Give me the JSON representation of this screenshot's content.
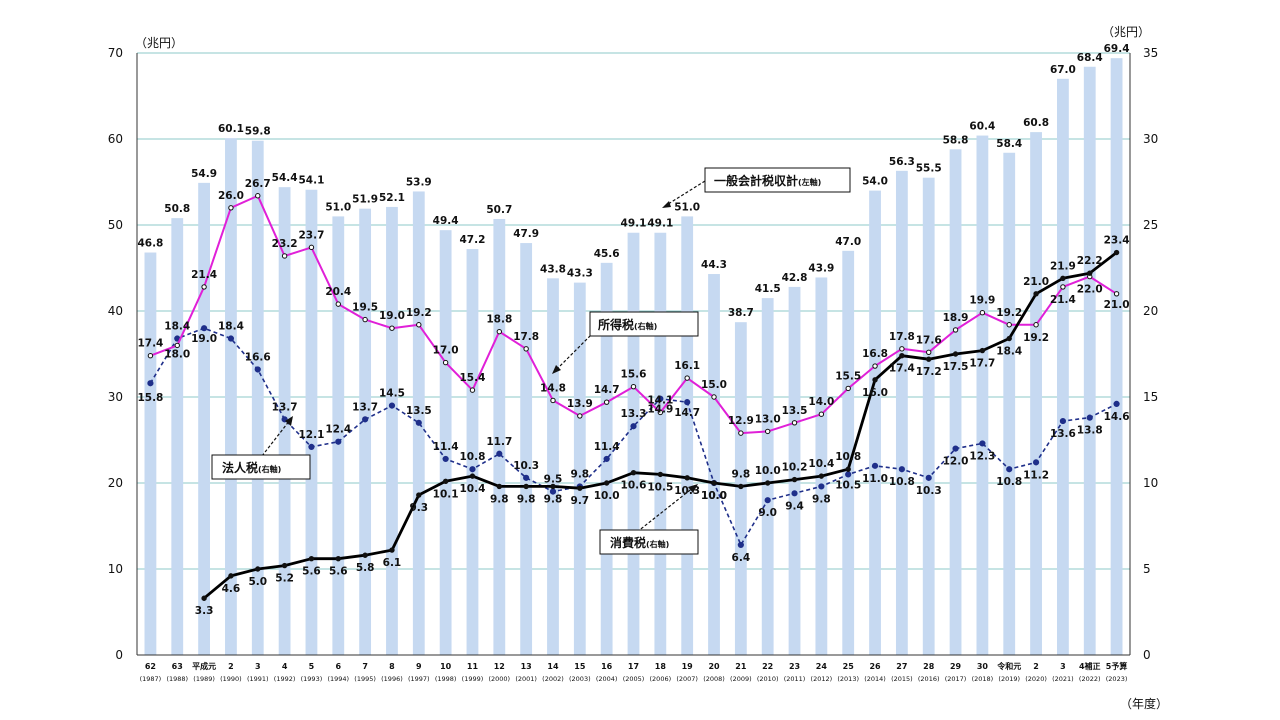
{
  "chart_data": {
    "type": "bar",
    "left_unit": "（兆円）",
    "right_unit": "（兆円）",
    "x_unit": "（年度）",
    "y_left_range": [
      0,
      70
    ],
    "y_right_range": [
      0,
      35
    ],
    "y_left_ticks": [
      "0",
      "10",
      "20",
      "30",
      "40",
      "50",
      "60",
      "70"
    ],
    "y_right_ticks": [
      "0",
      "5",
      "10",
      "15",
      "20",
      "25",
      "30",
      "35"
    ],
    "x_labels": [
      [
        "62",
        "(1987)"
      ],
      [
        "63",
        "(1988)"
      ],
      [
        "平成元",
        "(1989)"
      ],
      [
        "2",
        "(1990)"
      ],
      [
        "3",
        "(1991)"
      ],
      [
        "4",
        "(1992)"
      ],
      [
        "5",
        "(1993)"
      ],
      [
        "6",
        "(1994)"
      ],
      [
        "7",
        "(1995)"
      ],
      [
        "8",
        "(1996)"
      ],
      [
        "9",
        "(1997)"
      ],
      [
        "10",
        "(1998)"
      ],
      [
        "11",
        "(1999)"
      ],
      [
        "12",
        "(2000)"
      ],
      [
        "13",
        "(2001)"
      ],
      [
        "14",
        "(2002)"
      ],
      [
        "15",
        "(2003)"
      ],
      [
        "16",
        "(2004)"
      ],
      [
        "17",
        "(2005)"
      ],
      [
        "18",
        "(2006)"
      ],
      [
        "19",
        "(2007)"
      ],
      [
        "20",
        "(2008)"
      ],
      [
        "21",
        "(2009)"
      ],
      [
        "22",
        "(2010)"
      ],
      [
        "23",
        "(2011)"
      ],
      [
        "24",
        "(2012)"
      ],
      [
        "25",
        "(2013)"
      ],
      [
        "26",
        "(2014)"
      ],
      [
        "27",
        "(2015)"
      ],
      [
        "28",
        "(2016)"
      ],
      [
        "29",
        "(2017)"
      ],
      [
        "30",
        "(2018)"
      ],
      [
        "令和元",
        "(2019)"
      ],
      [
        "2",
        "(2020)"
      ],
      [
        "3",
        "(2021)"
      ],
      [
        "4補正",
        "(2022)"
      ],
      [
        "5予算",
        "(2023)"
      ]
    ],
    "series": [
      {
        "name": "一般会計税収計",
        "axis_note": "(左軸)",
        "kind": "bar",
        "color": "#c6d9f1",
        "values": [
          46.8,
          50.8,
          54.9,
          60.1,
          59.8,
          54.4,
          54.1,
          51.0,
          51.9,
          52.1,
          53.9,
          49.4,
          47.2,
          50.7,
          47.9,
          43.8,
          43.3,
          45.6,
          49.1,
          49.1,
          51.0,
          44.3,
          38.7,
          41.5,
          42.8,
          43.9,
          47.0,
          54.0,
          56.3,
          55.5,
          58.8,
          60.4,
          58.4,
          60.8,
          67.0,
          68.4,
          69.4
        ],
        "labels": [
          "46.8",
          "50.8",
          "54.9",
          "60.1",
          "59.8",
          "54.4",
          "54.1",
          "51.0",
          "51.9",
          "52.1",
          "53.9",
          "49.4",
          "47.2",
          "50.7",
          "47.9",
          "43.8",
          "43.3",
          "45.6",
          "49.1",
          "49.1",
          "51.0",
          "44.3",
          "38.7",
          "41.5",
          "42.8",
          "43.9",
          "47.0",
          "54.0",
          "56.3",
          "55.5",
          "58.8",
          "60.4",
          "58.4",
          "60.8",
          "67.0",
          "68.4",
          "69.4"
        ]
      },
      {
        "name": "所得税",
        "axis_note": "(右軸)",
        "kind": "line",
        "color": "#e020d8",
        "values": [
          17.4,
          18.0,
          21.4,
          26.0,
          26.7,
          23.2,
          23.7,
          20.4,
          19.5,
          19.0,
          19.2,
          17.0,
          15.4,
          18.8,
          17.8,
          14.8,
          13.9,
          14.7,
          15.6,
          14.1,
          16.1,
          15.0,
          12.9,
          13.0,
          13.5,
          14.0,
          15.5,
          16.8,
          17.8,
          17.6,
          18.9,
          19.9,
          19.2,
          19.2,
          21.4,
          22.0,
          21.0
        ],
        "labels": [
          "17.4",
          "18.0",
          "21.4",
          "26.0",
          "26.7",
          "23.2",
          "23.7",
          "20.4",
          "19.5",
          "19.0",
          "19.2",
          "17.0",
          "15.4",
          "18.8",
          "17.8",
          "14.8",
          "13.9",
          "14.7",
          "15.6",
          "14.1",
          "16.1",
          "15.0",
          "12.9",
          "13.0",
          "13.5",
          "14.0",
          "15.5",
          "16.8",
          "17.8",
          "17.6",
          "18.9",
          "19.9",
          "19.2",
          "19.2",
          "21.4",
          "22.0",
          "21.0"
        ]
      },
      {
        "name": "法人税",
        "axis_note": "(右軸)",
        "kind": "dashed-line",
        "color": "#1f2f8a",
        "values": [
          15.8,
          18.4,
          19.0,
          18.4,
          16.6,
          13.7,
          12.1,
          12.4,
          13.7,
          14.5,
          13.5,
          11.4,
          10.8,
          11.7,
          10.3,
          9.5,
          9.8,
          11.4,
          13.3,
          14.9,
          14.7,
          10.0,
          6.4,
          9.0,
          9.4,
          9.8,
          10.5,
          11.0,
          10.8,
          10.3,
          12.0,
          12.3,
          10.8,
          11.2,
          13.6,
          13.8,
          14.6
        ],
        "labels": [
          "15.8",
          "18.4",
          "19.0",
          "18.4",
          "16.6",
          "13.7",
          "12.1",
          "12.4",
          "13.7",
          "14.5",
          "13.5",
          "11.4",
          "10.8",
          "11.7",
          "10.3",
          "9.5",
          "9.8",
          "11.4",
          "13.3",
          "14.9",
          "14.7",
          "10.0",
          "6.4",
          "9.0",
          "9.4",
          "9.8",
          "10.5",
          "11.0",
          "10.8",
          "10.3",
          "12.0",
          "12.3",
          "10.8",
          "11.2",
          "13.6",
          "13.8",
          "14.6"
        ]
      },
      {
        "name": "消費税",
        "axis_note": "(右軸)",
        "kind": "line",
        "color": "#000000",
        "values": [
          null,
          null,
          3.3,
          4.6,
          5.0,
          5.2,
          5.6,
          5.6,
          5.8,
          6.1,
          9.3,
          10.1,
          10.4,
          9.8,
          9.8,
          9.8,
          9.7,
          10.0,
          10.6,
          10.5,
          10.3,
          10.0,
          9.8,
          10.0,
          10.2,
          10.4,
          10.8,
          16.0,
          17.4,
          17.2,
          17.5,
          17.7,
          18.4,
          21.0,
          21.9,
          22.2,
          23.4
        ],
        "labels": [
          "",
          "",
          "3.3",
          "4.6",
          "5.0",
          "5.2",
          "5.6",
          "5.6",
          "5.8",
          "6.1",
          "9.3",
          "10.1",
          "10.4",
          "9.8",
          "9.8",
          "9.8",
          "9.7",
          "10.0",
          "10.6",
          "10.5",
          "10.3",
          "10.0",
          "9.8",
          "10.0",
          "10.2",
          "10.4",
          "10.8",
          "16.0",
          "17.4",
          "17.2",
          "17.5",
          "17.7",
          "18.4",
          "21.0",
          "21.9",
          "22.2",
          "23.4"
        ]
      }
    ],
    "gridlines": true
  }
}
